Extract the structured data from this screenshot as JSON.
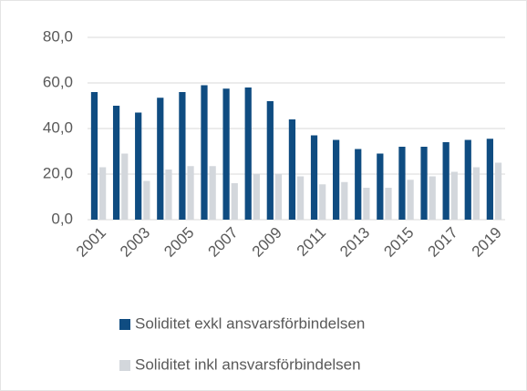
{
  "chart_data": {
    "type": "bar",
    "categories": [
      "2001",
      null,
      "2003",
      null,
      "2005",
      null,
      "2007",
      null,
      "2009",
      null,
      "2011",
      null,
      "2013",
      null,
      "2015",
      null,
      "2017",
      null,
      "2019"
    ],
    "series": [
      {
        "name": "Soliditet exkl ansvarsförbindelsen",
        "color": "#0f4c81",
        "values": [
          56,
          50,
          47,
          53.5,
          56,
          59,
          57.5,
          58,
          52,
          44,
          37,
          35,
          31,
          29,
          32,
          32,
          34,
          35,
          35.5
        ]
      },
      {
        "name": "Soliditet inkl ansvarsförbindelsen",
        "color": "#d3d7dc",
        "values": [
          23,
          29,
          17,
          22,
          23.5,
          23.5,
          16,
          20,
          20,
          19,
          15.5,
          16.5,
          14,
          14,
          17.5,
          19,
          21,
          23,
          25
        ]
      }
    ],
    "ylim": [
      0,
      80
    ],
    "yticks": [
      {
        "value": 0,
        "label": "0,0"
      },
      {
        "value": 20,
        "label": "20,0"
      },
      {
        "value": 40,
        "label": "40,0"
      },
      {
        "value": 60,
        "label": "60,0"
      },
      {
        "value": 80,
        "label": "80,0"
      }
    ],
    "grid": true,
    "legend": "bottom"
  }
}
